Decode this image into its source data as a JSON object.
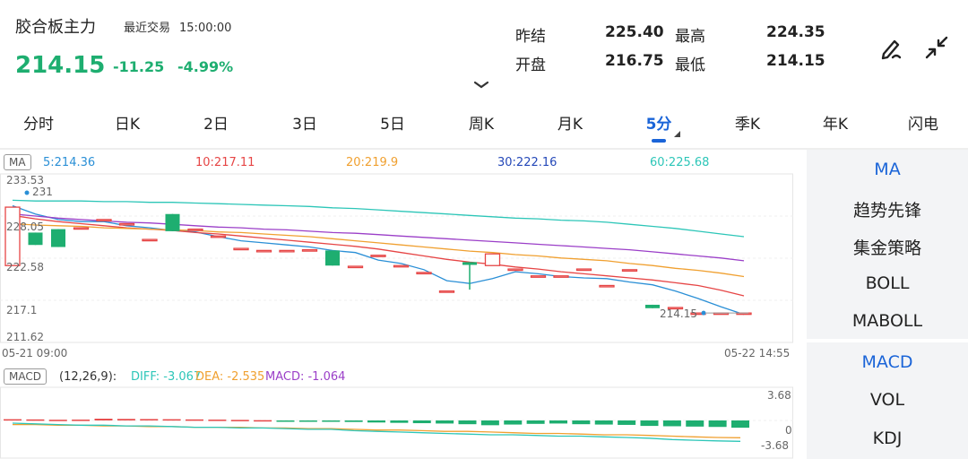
{
  "header": {
    "name": "胶合板主力",
    "status": "最近交易",
    "time": "15:00:00",
    "price": "214.15",
    "change": "-11.25",
    "change_pct": "-4.99%",
    "quotes": [
      {
        "label": "昨结",
        "value": "225.40",
        "label2": "最高",
        "value2": "224.35"
      },
      {
        "label": "开盘",
        "value": "216.75",
        "label2": "最低",
        "value2": "214.15"
      }
    ],
    "colors": {
      "down": "#1eae70",
      "up": "#e64545",
      "accent": "#1a64d8"
    }
  },
  "icons": {
    "draw": "pen-icon",
    "collapse": "collapse-icon",
    "expand": "chevron-down-icon"
  },
  "tabs": [
    {
      "label": "分时"
    },
    {
      "label": "日K"
    },
    {
      "label": "2日"
    },
    {
      "label": "3日"
    },
    {
      "label": "5日"
    },
    {
      "label": "周K"
    },
    {
      "label": "月K"
    },
    {
      "label": "5分",
      "active": true
    },
    {
      "label": "季K"
    },
    {
      "label": "年K"
    },
    {
      "label": "闪电"
    }
  ],
  "ma_legend": {
    "badge": "MA",
    "items": [
      {
        "text": "5:214.36",
        "color": "#2a8fd6"
      },
      {
        "text": "10:217.11",
        "color": "#e64545"
      },
      {
        "text": "20:219.9",
        "color": "#f0a030"
      },
      {
        "text": "30:222.16",
        "color": "#2448b8"
      },
      {
        "text": "60:225.68",
        "color": "#2dc6b8"
      }
    ]
  },
  "axis": {
    "y_ticks": [
      "233.53",
      "231",
      "228.05",
      "222.58",
      "217.1",
      "211.62"
    ],
    "x_start": "05-21 09:00",
    "x_end": "05-22 14:55",
    "last_price_label": "214.15"
  },
  "macd_legend": {
    "badge": "MACD",
    "params": "(12,26,9):",
    "items": [
      {
        "text": "DIFF: -3.067",
        "color": "#2dc6b8"
      },
      {
        "text": "DEA: -2.535",
        "color": "#f0a030"
      },
      {
        "text": "MACD: -1.064",
        "color": "#9b3fc8"
      }
    ],
    "y_ticks": [
      "3.68",
      "0",
      "-3.68"
    ]
  },
  "side_panel": {
    "groups": [
      [
        "MA",
        "趋势先锋",
        "集金策略",
        "BOLL",
        "MABOLL"
      ],
      [
        "MACD",
        "VOL",
        "KDJ"
      ]
    ]
  },
  "chart_data": {
    "type": "candlestick",
    "y_range": [
      211.62,
      233.53
    ],
    "candles": [
      {
        "o": 221.5,
        "c": 230.0,
        "h": 230.0,
        "l": 221.5
      },
      {
        "o": 226.3,
        "c": 224.5,
        "h": 226.3,
        "l": 224.5
      },
      {
        "o": 226.8,
        "c": 224.2,
        "h": 226.8,
        "l": 224.2
      },
      {
        "o": 227.0,
        "c": 227.0,
        "h": 227.0,
        "l": 227.0
      },
      {
        "o": 228.2,
        "c": 228.2,
        "h": 228.2,
        "l": 228.2
      },
      {
        "o": 227.6,
        "c": 227.6,
        "h": 227.6,
        "l": 227.6
      },
      {
        "o": 225.3,
        "c": 225.3,
        "h": 225.3,
        "l": 225.3
      },
      {
        "o": 229.0,
        "c": 226.5,
        "h": 229.0,
        "l": 226.5
      },
      {
        "o": 226.8,
        "c": 226.8,
        "h": 226.8,
        "l": 226.8
      },
      {
        "o": 225.8,
        "c": 225.8,
        "h": 225.8,
        "l": 225.8
      },
      {
        "o": 224.0,
        "c": 224.0,
        "h": 224.0,
        "l": 224.0
      },
      {
        "o": 223.7,
        "c": 223.7,
        "h": 223.7,
        "l": 223.7
      },
      {
        "o": 223.7,
        "c": 223.7,
        "h": 223.7,
        "l": 223.7
      },
      {
        "o": 223.8,
        "c": 223.8,
        "h": 223.8,
        "l": 223.8
      },
      {
        "o": 223.7,
        "c": 221.5,
        "h": 223.7,
        "l": 221.5
      },
      {
        "o": 221.4,
        "c": 221.4,
        "h": 221.4,
        "l": 221.4
      },
      {
        "o": 223.0,
        "c": 223.0,
        "h": 223.0,
        "l": 223.0
      },
      {
        "o": 221.5,
        "c": 221.5,
        "h": 221.5,
        "l": 221.5
      },
      {
        "o": 220.5,
        "c": 220.5,
        "h": 220.5,
        "l": 220.5
      },
      {
        "o": 217.8,
        "c": 217.8,
        "h": 217.8,
        "l": 217.8
      },
      {
        "o": 222.0,
        "c": 221.6,
        "h": 222.0,
        "l": 218.0
      },
      {
        "o": 221.5,
        "c": 223.2,
        "h": 223.2,
        "l": 221.5
      },
      {
        "o": 221.0,
        "c": 221.0,
        "h": 221.0,
        "l": 221.0
      },
      {
        "o": 220.0,
        "c": 220.0,
        "h": 220.0,
        "l": 220.0
      },
      {
        "o": 220.0,
        "c": 220.0,
        "h": 220.0,
        "l": 220.0
      },
      {
        "o": 221.0,
        "c": 221.0,
        "h": 221.0,
        "l": 221.0
      },
      {
        "o": 218.6,
        "c": 218.6,
        "h": 218.6,
        "l": 218.6
      },
      {
        "o": 220.9,
        "c": 220.9,
        "h": 220.9,
        "l": 220.9
      },
      {
        "o": 215.8,
        "c": 215.3,
        "h": 215.8,
        "l": 215.3
      },
      {
        "o": 215.4,
        "c": 215.4,
        "h": 215.4,
        "l": 215.4
      },
      {
        "o": 214.6,
        "c": 214.6,
        "h": 214.6,
        "l": 214.6
      },
      {
        "o": 214.6,
        "c": 214.6,
        "h": 214.6,
        "l": 214.6
      },
      {
        "o": 214.6,
        "c": 214.6,
        "h": 214.6,
        "l": 214.6
      }
    ],
    "ma": [
      {
        "name": "MA5",
        "color": "#2a8fd6",
        "values": [
          230.2,
          229.0,
          228.2,
          227.9,
          227.9,
          227.3,
          227.0,
          226.6,
          226.4,
          225.7,
          225.1,
          224.8,
          224.5,
          224.2,
          223.7,
          223.4,
          222.3,
          221.8,
          220.9,
          219.3,
          218.9,
          219.6,
          220.6,
          220.3,
          219.9,
          219.7,
          219.6,
          219.1,
          218.7,
          217.8,
          216.7,
          215.5,
          214.4
        ]
      },
      {
        "name": "MA10",
        "color": "#e64545",
        "values": [
          228.8,
          228.3,
          227.9,
          227.6,
          227.3,
          227.0,
          226.8,
          226.6,
          226.3,
          226.1,
          225.8,
          225.5,
          225.2,
          224.9,
          224.6,
          224.3,
          223.9,
          223.4,
          222.9,
          222.4,
          222.0,
          221.7,
          221.3,
          221.0,
          220.6,
          220.3,
          220.0,
          219.7,
          219.4,
          219.0,
          218.6,
          217.9,
          217.1
        ]
      },
      {
        "name": "MA20",
        "color": "#f0a030",
        "values": [
          227.6,
          227.4,
          227.3,
          227.2,
          227.0,
          226.9,
          226.8,
          226.7,
          226.6,
          226.4,
          226.3,
          226.1,
          225.9,
          225.7,
          225.4,
          225.1,
          224.8,
          224.5,
          224.2,
          223.9,
          223.6,
          223.4,
          223.1,
          222.9,
          222.6,
          222.4,
          222.2,
          221.8,
          221.5,
          221.1,
          220.8,
          220.4,
          219.9
        ]
      },
      {
        "name": "MA30",
        "color": "#9b3fc8",
        "values": [
          229.0,
          228.7,
          228.4,
          228.2,
          228.0,
          227.8,
          227.7,
          227.5,
          227.3,
          227.1,
          227.0,
          226.8,
          226.7,
          226.5,
          226.3,
          226.2,
          226.0,
          225.8,
          225.6,
          225.4,
          225.2,
          225.0,
          224.8,
          224.6,
          224.4,
          224.2,
          224.0,
          223.8,
          223.5,
          223.2,
          222.9,
          222.6,
          222.2
        ]
      },
      {
        "name": "MA60",
        "color": "#2dc6b8",
        "values": [
          231.0,
          230.9,
          230.9,
          230.9,
          230.8,
          230.8,
          230.7,
          230.7,
          230.6,
          230.5,
          230.4,
          230.3,
          230.2,
          230.1,
          229.9,
          229.8,
          229.6,
          229.4,
          229.2,
          229.0,
          228.8,
          228.6,
          228.4,
          228.3,
          228.1,
          228.0,
          227.8,
          227.5,
          227.2,
          226.9,
          226.5,
          226.1,
          225.7
        ]
      }
    ],
    "macd": {
      "y_range": [
        -3.68,
        3.68
      ],
      "hist": [
        0.18,
        0.15,
        0.1,
        0.12,
        0.25,
        0.22,
        0.2,
        0.18,
        0.15,
        0.12,
        0.08,
        0.04,
        -0.05,
        -0.08,
        -0.12,
        -0.22,
        -0.3,
        -0.35,
        -0.4,
        -0.45,
        -0.55,
        -0.7,
        -0.6,
        -0.5,
        -0.45,
        -0.55,
        -0.6,
        -0.65,
        -0.8,
        -0.85,
        -0.9,
        -0.95,
        -1.064
      ],
      "diff": [
        -0.4,
        -0.5,
        -0.6,
        -0.7,
        -0.7,
        -0.8,
        -0.8,
        -0.9,
        -1.0,
        -1.0,
        -1.1,
        -1.1,
        -1.2,
        -1.3,
        -1.3,
        -1.5,
        -1.6,
        -1.7,
        -1.8,
        -1.9,
        -2.0,
        -2.1,
        -2.1,
        -2.2,
        -2.3,
        -2.3,
        -2.4,
        -2.5,
        -2.6,
        -2.8,
        -2.9,
        -3.0,
        -3.067
      ],
      "dea": [
        -0.6,
        -0.6,
        -0.7,
        -0.7,
        -0.8,
        -0.8,
        -0.9,
        -0.9,
        -1.0,
        -1.0,
        -1.0,
        -1.1,
        -1.1,
        -1.2,
        -1.2,
        -1.3,
        -1.4,
        -1.4,
        -1.5,
        -1.6,
        -1.6,
        -1.7,
        -1.8,
        -1.9,
        -1.9,
        -2.0,
        -2.1,
        -2.1,
        -2.2,
        -2.3,
        -2.4,
        -2.5,
        -2.535
      ]
    }
  }
}
